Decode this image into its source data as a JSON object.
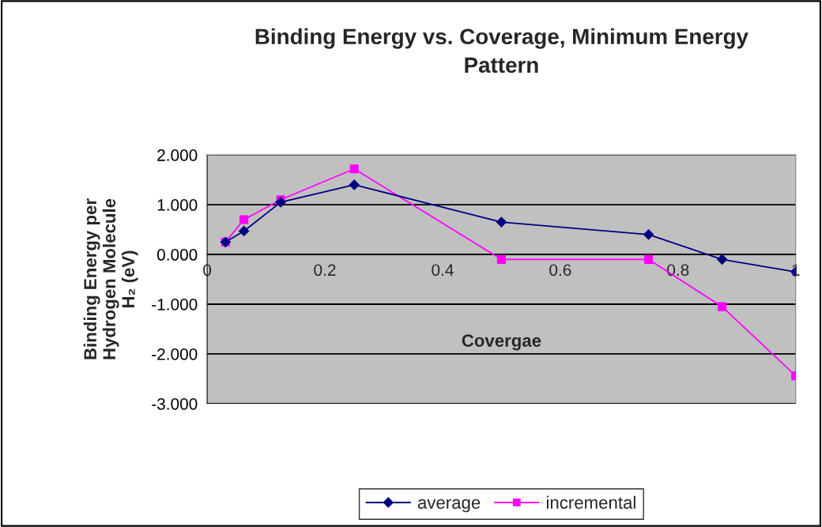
{
  "chart_data": {
    "type": "line",
    "title": "Binding Energy vs. Coverage, Minimum Energy\nPattern",
    "xlabel": "Covergae",
    "ylabel": "Binding Energy per\nHydrogen Molecule\nH₂ (eV)",
    "x": [
      0.03125,
      0.0625,
      0.125,
      0.25,
      0.5,
      0.75,
      0.875,
      1
    ],
    "series": [
      {
        "name": "average",
        "color": "#000080",
        "marker": "diamond",
        "values": [
          0.25,
          0.47,
          1.05,
          1.4,
          0.65,
          0.4,
          -0.1,
          -0.35
        ]
      },
      {
        "name": "incremental",
        "color": "#ff00ff",
        "marker": "square",
        "values": [
          0.25,
          0.7,
          1.1,
          1.72,
          -0.1,
          -0.1,
          -1.05,
          -2.44
        ]
      }
    ],
    "xlim": [
      0,
      1
    ],
    "xticks": [
      0,
      0.2,
      0.4,
      0.6,
      0.8,
      1
    ],
    "ylim": [
      -3,
      2
    ],
    "yticks": [
      {
        "value": -3,
        "label": "-3.000"
      },
      {
        "value": -2,
        "label": "-2.000"
      },
      {
        "value": -1,
        "label": "-1.000"
      },
      {
        "value": 0,
        "label": "0.000"
      },
      {
        "value": 1,
        "label": "1.000"
      },
      {
        "value": 2,
        "label": "2.000"
      }
    ],
    "grid": "y",
    "legend": "bottom",
    "line_style": "solid"
  }
}
